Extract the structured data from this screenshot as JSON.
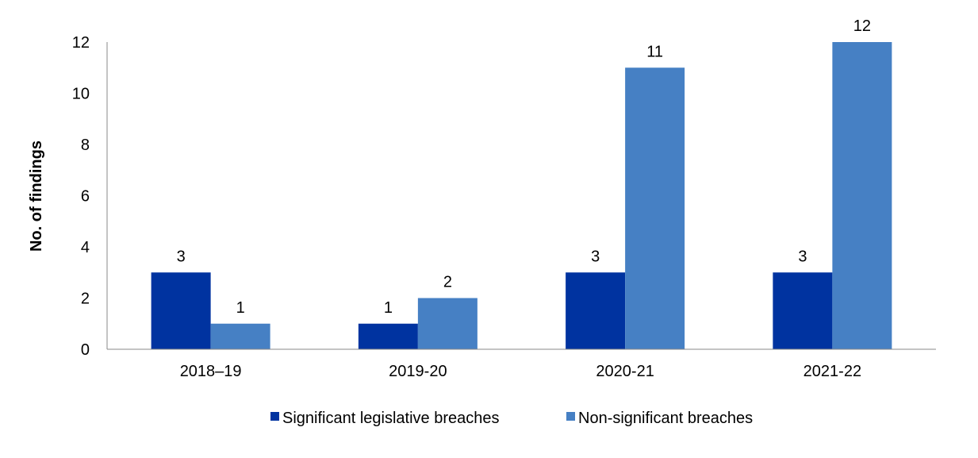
{
  "chart_data": {
    "type": "bar",
    "ylabel": "No. of findings",
    "xlabel": "",
    "categories": [
      "2018–19",
      "2019-20",
      "2020-21",
      "2021-22"
    ],
    "ylim": [
      0,
      12
    ],
    "yticks": [
      0,
      2,
      4,
      6,
      8,
      10,
      12
    ],
    "grid": false,
    "legend_position": "bottom",
    "series": [
      {
        "name": "Significant legislative breaches",
        "color": "#0033A0",
        "values": [
          3,
          1,
          3,
          3
        ]
      },
      {
        "name": "Non-significant breaches",
        "color": "#4680C4",
        "values": [
          1,
          2,
          11,
          12
        ]
      }
    ]
  }
}
